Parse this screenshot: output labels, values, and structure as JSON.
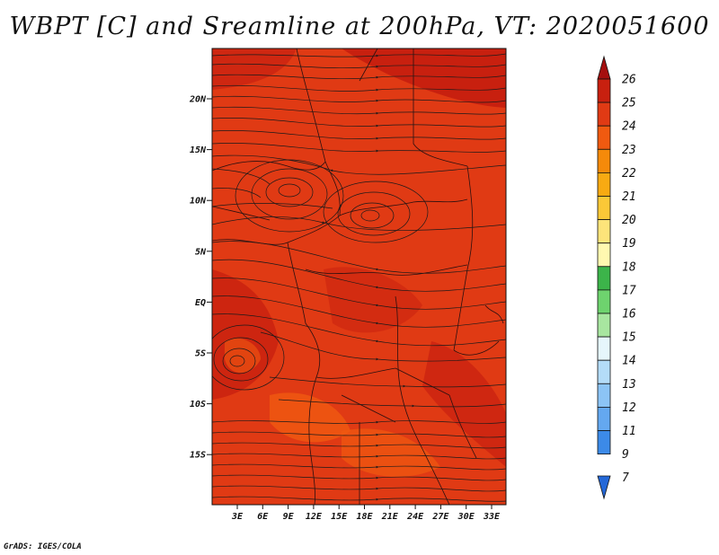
{
  "title": "WBPT [C] and Sreamline at 200hPa, VT: 2020051600",
  "credit": "GrADS: IGES/COLA",
  "map": {
    "lat_ticks": [
      "20N",
      "15N",
      "10N",
      "5N",
      "EQ",
      "5S",
      "10S",
      "15S"
    ],
    "lon_ticks": [
      "3E",
      "6E",
      "9E",
      "12E",
      "15E",
      "18E",
      "21E",
      "24E",
      "27E",
      "30E",
      "33E"
    ],
    "background_color": "#e03a14",
    "streamline_color": "#1a1a1a",
    "border_color": "#2a1010"
  },
  "colorbar": {
    "labels": [
      "26",
      "25",
      "24",
      "23",
      "22",
      "21",
      "20",
      "19",
      "18",
      "17",
      "16",
      "15",
      "14",
      "13",
      "12",
      "11",
      "9",
      "7"
    ],
    "colors": [
      "#a50f0f",
      "#c8200f",
      "#e03a14",
      "#f05a10",
      "#f58a0a",
      "#f8aa12",
      "#fbc837",
      "#fde47a",
      "#fff8b0",
      "#3cb44a",
      "#6ed36e",
      "#a8e6a0",
      "#e6f6fc",
      "#b4dcf8",
      "#8cc4f5",
      "#64a8f0",
      "#3c8ae8",
      "#2468d8"
    ]
  }
}
